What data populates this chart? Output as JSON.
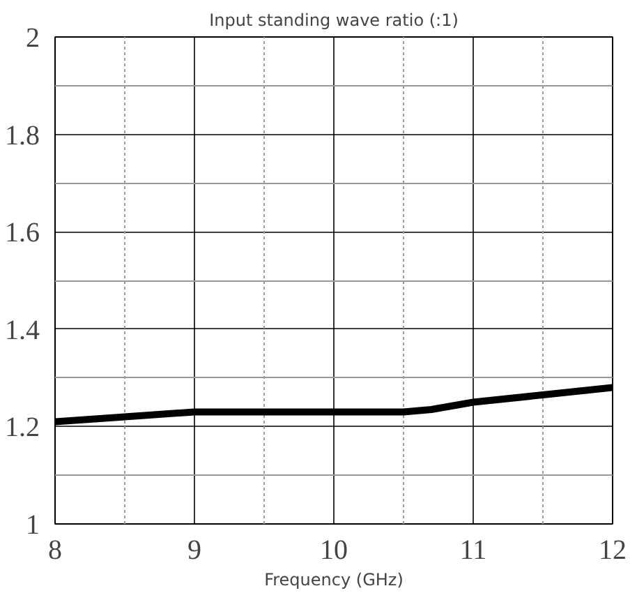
{
  "chart_data": {
    "type": "line",
    "title": "Input standing wave ratio (:1)",
    "xlabel": "Frequency (GHz)",
    "x": [
      8,
      8.5,
      9,
      9.5,
      10,
      10.5,
      10.7,
      11,
      11.5,
      12
    ],
    "series": [
      {
        "color": "#000000",
        "values": [
          1.21,
          1.22,
          1.23,
          1.23,
          1.23,
          1.23,
          1.235,
          1.25,
          1.265,
          1.28
        ]
      }
    ],
    "xlim": [
      8,
      12
    ],
    "ylim": [
      1,
      2
    ],
    "xticks": [
      8,
      {
        "value": 8.5,
        "label": null
      },
      9,
      {
        "value": 9.5,
        "label": null
      },
      10,
      {
        "value": 10.5,
        "label": null
      },
      11,
      {
        "value": 11.5,
        "label": null
      },
      12
    ],
    "yticks": [
      1,
      {
        "value": 1.1,
        "label": null
      },
      1.2,
      {
        "value": 1.3,
        "label": null
      },
      1.4,
      {
        "value": 1.5,
        "label": null
      },
      1.6,
      {
        "value": 1.7,
        "label": null
      },
      1.8,
      {
        "value": 1.9,
        "label": null
      },
      2
    ],
    "grid": true,
    "line_style": "solid",
    "marker": "none"
  }
}
